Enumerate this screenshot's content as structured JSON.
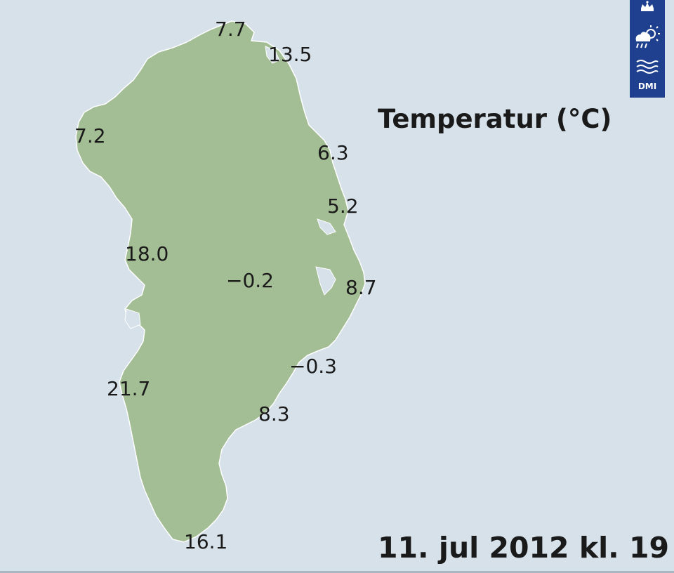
{
  "map": {
    "title": "Temperatur (°C)",
    "timestamp": "11. jul 2012 kl. 19",
    "region": "Greenland",
    "colors": {
      "sea": "#d6e1ea",
      "land": "#a3bd94",
      "land_edge": "#ffffff",
      "logo_bg": "#1f3f8f"
    },
    "logo": {
      "text": "DMI",
      "icon": "dmi-crown-sun-cloud-waves-logo"
    },
    "temperatures": [
      {
        "id": "nord",
        "value": "7.7"
      },
      {
        "id": "station-nord",
        "value": "13.5"
      },
      {
        "id": "qaanaaq",
        "value": "7.2"
      },
      {
        "id": "danmarkshavn",
        "value": "6.3"
      },
      {
        "id": "daneborg",
        "value": "5.2"
      },
      {
        "id": "ilulissat",
        "value": "18.0"
      },
      {
        "id": "summit",
        "value": "−0.2"
      },
      {
        "id": "ittoqqortoormiit",
        "value": "8.7"
      },
      {
        "id": "tasiilaq",
        "value": "−0.3"
      },
      {
        "id": "kangerlussuaq",
        "value": "21.7"
      },
      {
        "id": "ikermiit",
        "value": "8.3"
      },
      {
        "id": "narsarsuaq",
        "value": "16.1"
      }
    ]
  }
}
